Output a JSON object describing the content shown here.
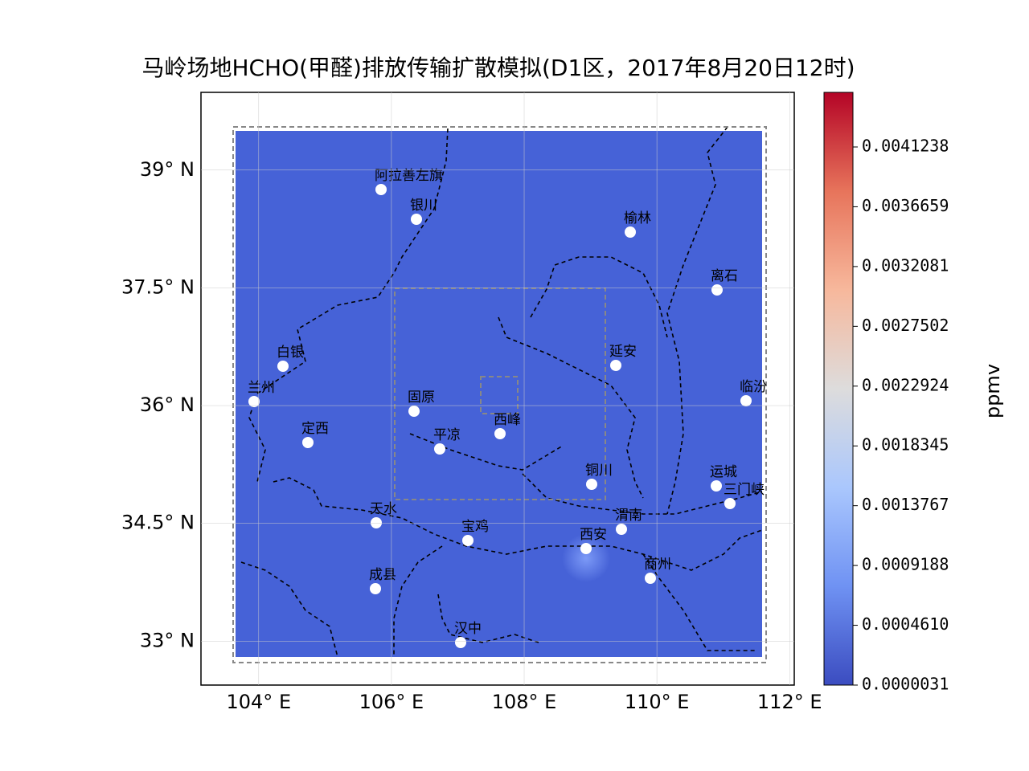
{
  "chart_data": {
    "type": "map",
    "title": "马岭场地HCHO(甲醛)排放传输扩散模拟(D1区，2017年8月20日12时)",
    "xlim": [
      103.13,
      112.07
    ],
    "ylim": [
      32.44,
      39.99
    ],
    "xticks": [
      {
        "value": 104,
        "label": "104° E"
      },
      {
        "value": 106,
        "label": "106° E"
      },
      {
        "value": 108,
        "label": "108° E"
      },
      {
        "value": 110,
        "label": "110° E"
      },
      {
        "value": 112,
        "label": "112° E"
      }
    ],
    "yticks": [
      {
        "value": 33,
        "label": "33° N"
      },
      {
        "value": 34.5,
        "label": "34.5° N"
      },
      {
        "value": 36,
        "label": "36° N"
      },
      {
        "value": 37.5,
        "label": "37.5° N"
      },
      {
        "value": 39,
        "label": "39° N"
      }
    ],
    "cities": [
      "阿拉善左旗",
      "银川",
      "榆林",
      "离石",
      "白银",
      "延安",
      "兰州",
      "临汾",
      "固原",
      "西峰",
      "定西",
      "平凉",
      "铜川",
      "运城",
      "三门峡",
      "天水",
      "渭南",
      "宝鸡",
      "西安",
      "商州",
      "成县",
      "汉中"
    ],
    "colorbar": {
      "label": "ppmv",
      "lim": [
        3.1e-06,
        0.004542
      ],
      "colors": [
        "#3b4cc0",
        "#6f92f3",
        "#aac7fd",
        "#dddcdc",
        "#f7b89c",
        "#e7745b",
        "#b40426"
      ],
      "ticks": [
        {
          "value": 3.1e-06,
          "label": "0.0000031"
        },
        {
          "value": 0.000461,
          "label": "0.0004610"
        },
        {
          "value": 0.0009188,
          "label": "0.0009188"
        },
        {
          "value": 0.0013767,
          "label": "0.0013767"
        },
        {
          "value": 0.0018345,
          "label": "0.0018345"
        },
        {
          "value": 0.0022924,
          "label": "0.0022924"
        },
        {
          "value": 0.0027502,
          "label": "0.0027502"
        },
        {
          "value": 0.0032081,
          "label": "0.0032081"
        },
        {
          "value": 0.0036659,
          "label": "0.0036659"
        },
        {
          "value": 0.0041238,
          "label": "0.0041238"
        }
      ]
    }
  }
}
